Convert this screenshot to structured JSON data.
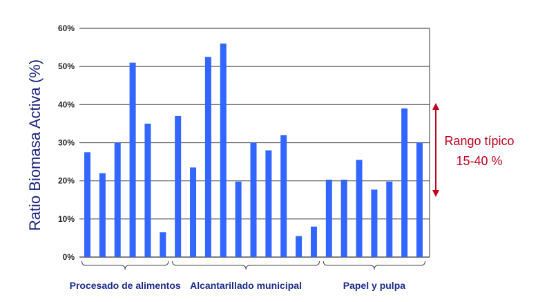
{
  "chart_data": {
    "type": "bar",
    "ylabel": "Ratio Biomasa Activa (%)",
    "xlabel": "",
    "ylim": [
      0,
      60
    ],
    "yticks": [
      0,
      10,
      20,
      30,
      40,
      50,
      60
    ],
    "ytick_labels": [
      "0%",
      "10%",
      "20%",
      "30%",
      "40%",
      "50%",
      "60%"
    ],
    "grid": true,
    "bar_color": "#3366ff",
    "groups": [
      {
        "label": "Procesado de alimentos",
        "values": [
          27.5,
          22,
          30,
          51,
          35,
          6.5
        ]
      },
      {
        "label": "Alcantarillado municipal",
        "values": [
          37,
          23.5,
          52.5,
          56,
          19.8,
          30,
          28,
          32,
          5.5,
          8
        ]
      },
      {
        "label": "Papel y pulpa",
        "values": [
          20.3,
          20.3,
          25.5,
          17.7,
          19.8,
          39,
          30
        ]
      }
    ],
    "annotation": {
      "line1": "Rango típico",
      "line2": "15-40 %",
      "range": [
        15,
        40
      ],
      "color": "#c0001e"
    }
  }
}
